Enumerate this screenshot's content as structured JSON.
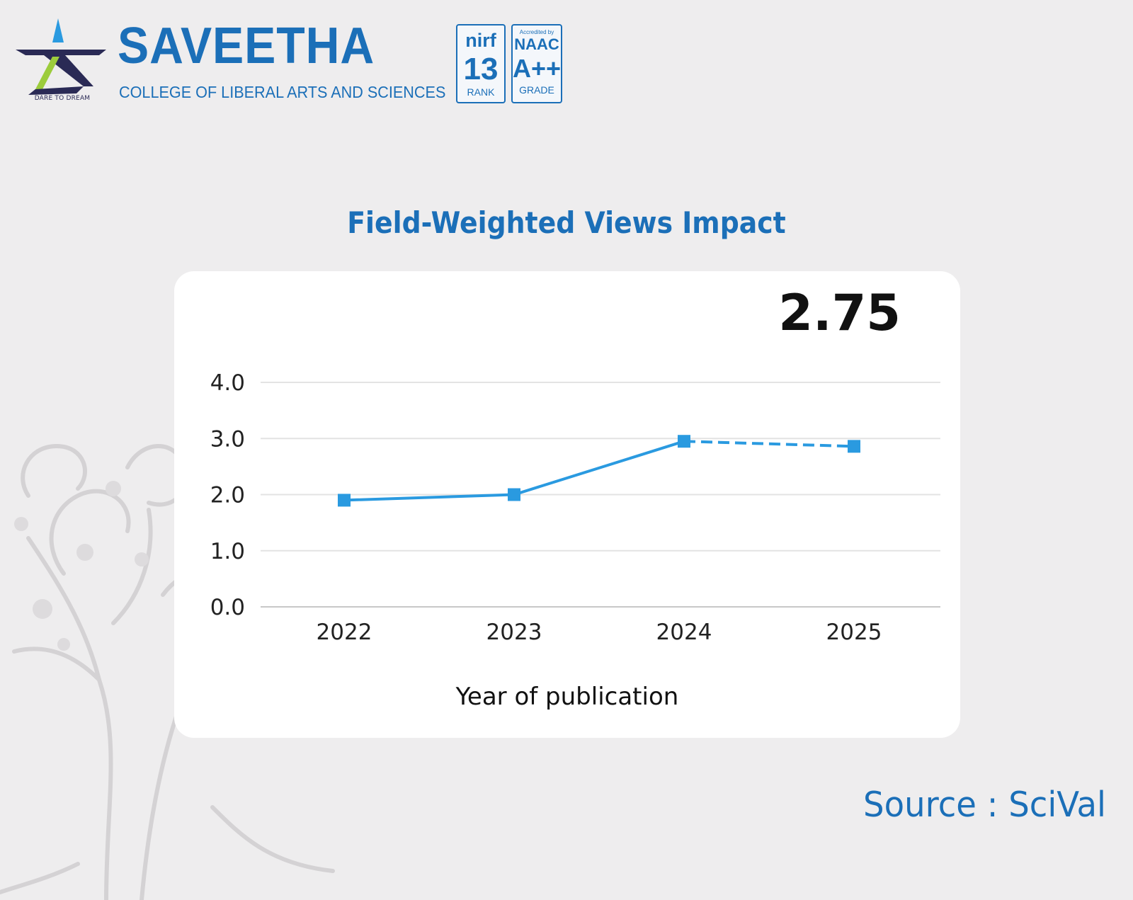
{
  "brand": {
    "name": "SAVEETHA",
    "subtitle": "COLLEGE OF LIBERAL ARTS AND SCIENCES",
    "tagline": "DARE TO DREAM",
    "colors": {
      "primary": "#1b6fb8",
      "navy": "#2a2a55",
      "accent_green": "#9ccc3c"
    }
  },
  "badges": {
    "nirf": {
      "logo_text": "nirf",
      "rank": "13",
      "caption": "RANK"
    },
    "naac": {
      "top_text": "Accredited by",
      "name": "NAAC",
      "grade": "A++",
      "caption": "GRADE"
    }
  },
  "chart_data": {
    "type": "line",
    "title": "Field-Weighted Views Impact",
    "headline_value": "2.75",
    "xlabel": "Year of publication",
    "ylabel": "",
    "categories": [
      "2022",
      "2023",
      "2024",
      "2025"
    ],
    "y_ticks": [
      "0.0",
      "1.0",
      "2.0",
      "3.0",
      "4.0"
    ],
    "ylim": [
      0,
      4
    ],
    "series": [
      {
        "values": [
          1.9,
          2.0,
          2.95,
          2.86
        ],
        "color": "#2a9ae0",
        "dashed_last_segment": true
      }
    ],
    "grid": true
  },
  "source": "Source : SciVal"
}
